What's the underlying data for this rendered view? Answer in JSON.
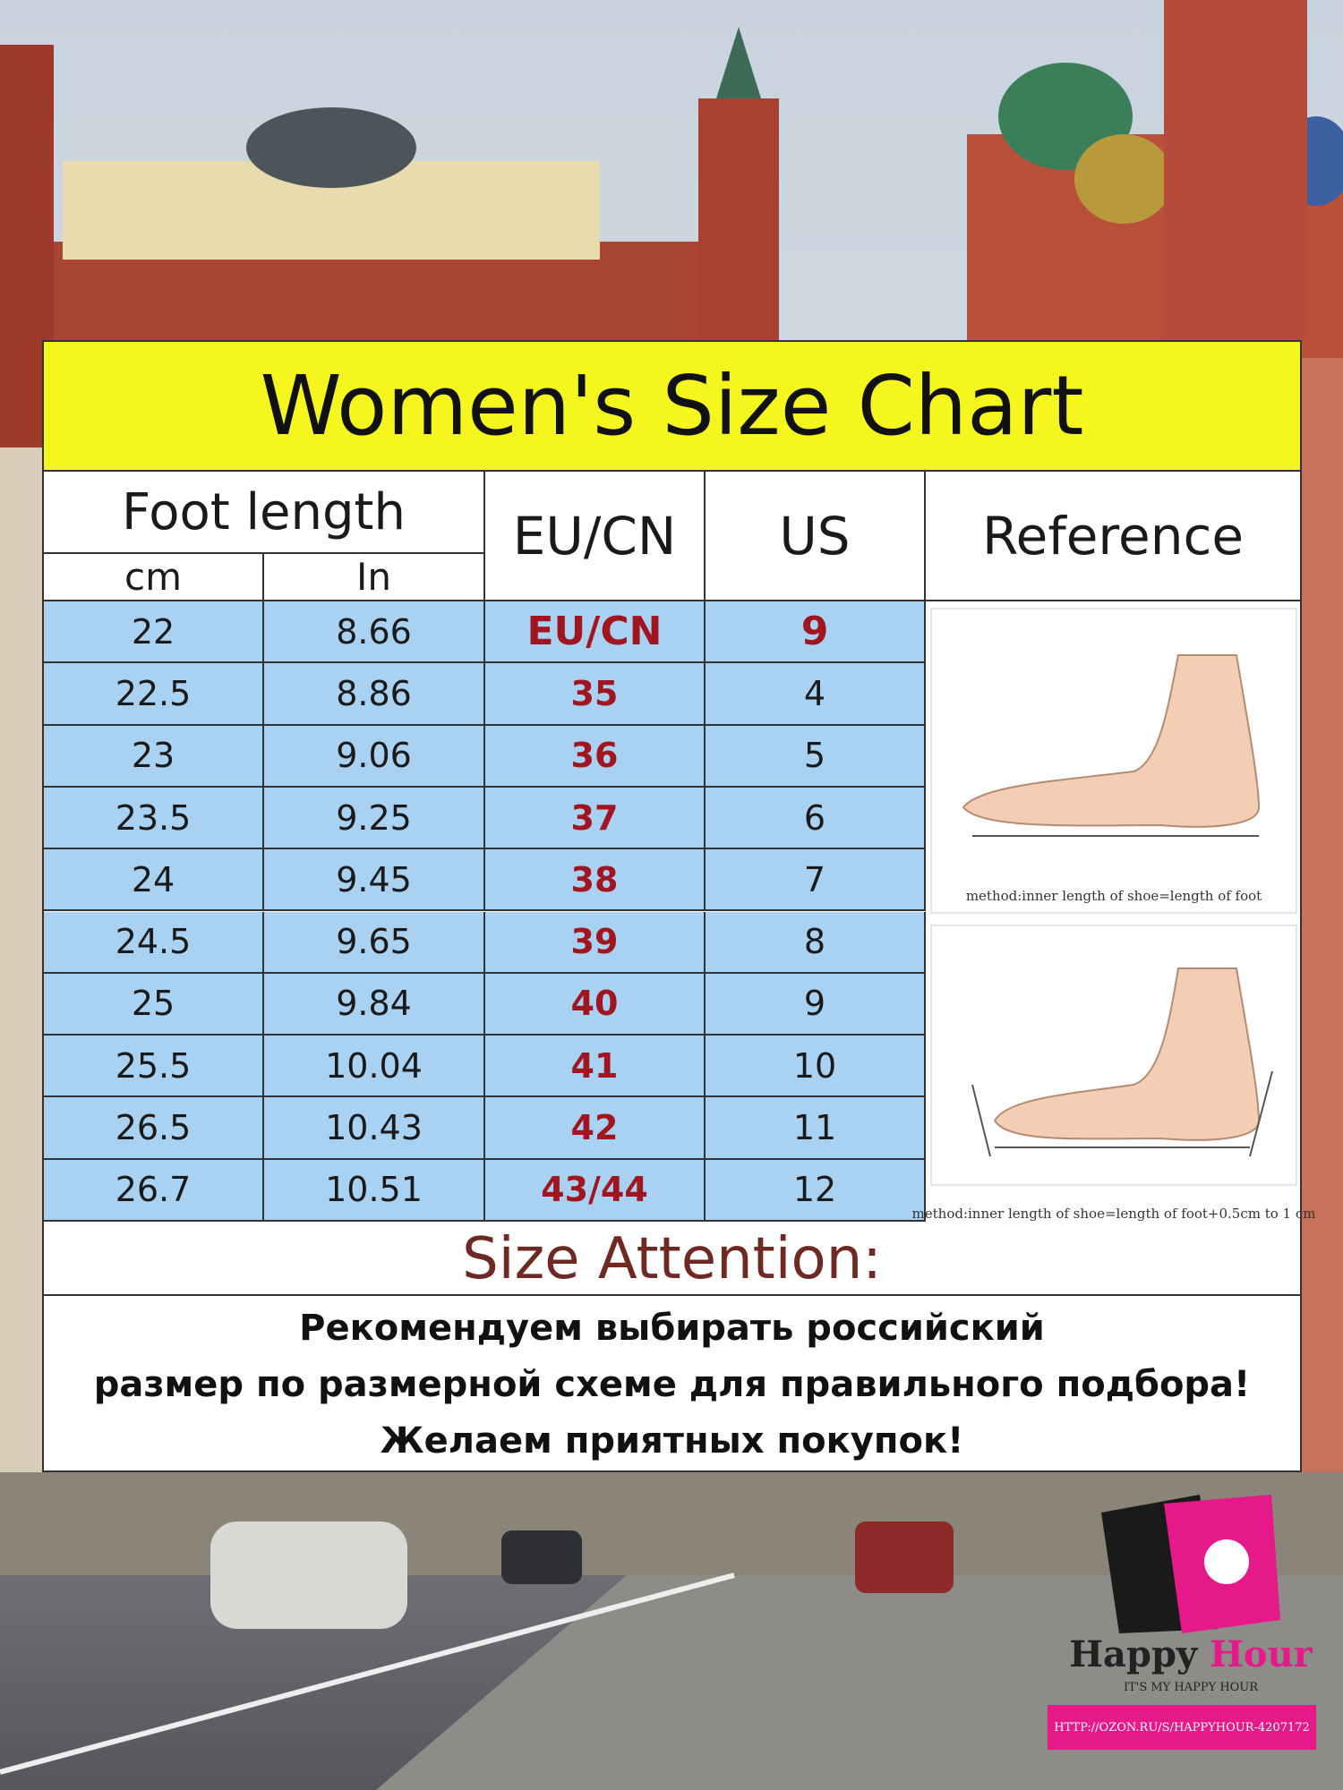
{
  "header": {
    "title": "Women's Size Chart"
  },
  "table": {
    "headers": {
      "foot_length": "Foot length",
      "cm": "cm",
      "in": "In",
      "eu": "EU/CN",
      "us": "US",
      "reference": "Reference"
    },
    "rows": [
      [
        "22",
        "8.66",
        "EU/CN",
        "9"
      ],
      [
        "22.5",
        "8.86",
        "35",
        "4"
      ],
      [
        "23",
        "9.06",
        "36",
        "5"
      ],
      [
        "23.5",
        "9.25",
        "37",
        "6"
      ],
      [
        "24",
        "9.45",
        "38",
        "7"
      ],
      [
        "24.5",
        "9.65",
        "39",
        "8"
      ],
      [
        "25",
        "9.84",
        "40",
        "9"
      ],
      [
        "25.5",
        "10.04",
        "41",
        "10"
      ],
      [
        "26.5",
        "10.43",
        "42",
        "11"
      ],
      [
        "26.7",
        "10.51",
        "43/44",
        "12"
      ]
    ],
    "reference_captions": [
      "method:inner length of shoe=length of foot",
      "method:inner length of shoe=length of foot+0.5cm to 1 cm"
    ]
  },
  "attention": {
    "title": "Size Attention:",
    "lines": [
      "Рекомендуем выбирать российский",
      "размер по размерной схеме для правильного подбора!",
      "Желаем приятных покупок!"
    ]
  },
  "brand": {
    "name_1": "Happy",
    "name_2": "Hour",
    "tagline": "IT'S MY HAPPY HOUR",
    "url": "HTTP://OZON.RU/S/HAPPYHOUR-4207172"
  }
}
